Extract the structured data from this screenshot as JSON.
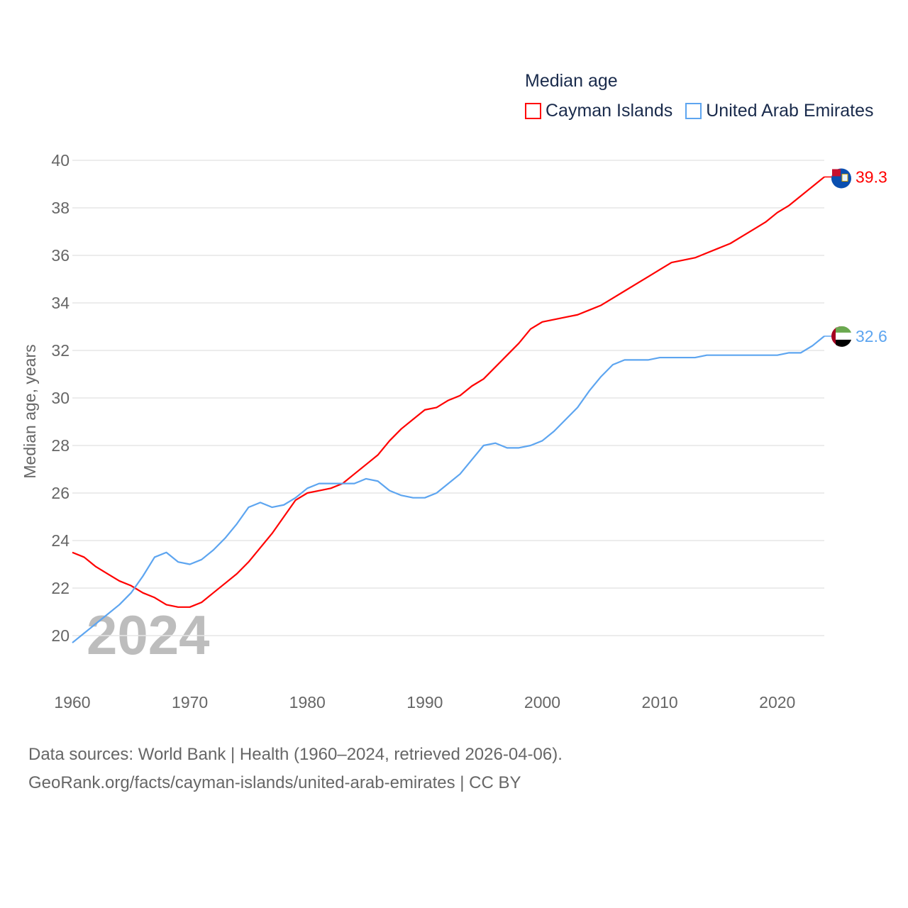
{
  "chart_data": {
    "type": "line",
    "title": "Median age",
    "xlabel": "",
    "ylabel": "Median age, years",
    "xlim": [
      1960,
      2024
    ],
    "ylim": [
      18.5,
      40.5
    ],
    "xticks": [
      1960,
      1970,
      1980,
      1990,
      2000,
      2010,
      2020
    ],
    "yticks": [
      20,
      22,
      24,
      26,
      28,
      30,
      32,
      34,
      36,
      38,
      40
    ],
    "grid": true,
    "legend_position": "top-right",
    "watermark_year": "2024",
    "x": [
      1960,
      1961,
      1962,
      1963,
      1964,
      1965,
      1966,
      1967,
      1968,
      1969,
      1970,
      1971,
      1972,
      1973,
      1974,
      1975,
      1976,
      1977,
      1978,
      1979,
      1980,
      1981,
      1982,
      1983,
      1984,
      1985,
      1986,
      1987,
      1988,
      1989,
      1990,
      1991,
      1992,
      1993,
      1994,
      1995,
      1996,
      1997,
      1998,
      1999,
      2000,
      2001,
      2002,
      2003,
      2004,
      2005,
      2006,
      2007,
      2008,
      2009,
      2010,
      2011,
      2012,
      2013,
      2014,
      2015,
      2016,
      2017,
      2018,
      2019,
      2020,
      2021,
      2022,
      2023,
      2024
    ],
    "series": [
      {
        "name": "Cayman Islands",
        "color": "#ff0000",
        "end_label": "39.3",
        "values": [
          23.5,
          23.3,
          22.9,
          22.6,
          22.3,
          22.1,
          21.8,
          21.6,
          21.3,
          21.2,
          21.2,
          21.4,
          21.8,
          22.2,
          22.6,
          23.1,
          23.7,
          24.3,
          25.0,
          25.7,
          26.0,
          26.1,
          26.2,
          26.4,
          26.8,
          27.2,
          27.6,
          28.2,
          28.7,
          29.1,
          29.5,
          29.6,
          29.9,
          30.1,
          30.5,
          30.8,
          31.3,
          31.8,
          32.3,
          32.9,
          33.2,
          33.3,
          33.4,
          33.5,
          33.7,
          33.9,
          34.2,
          34.5,
          34.8,
          35.1,
          35.4,
          35.7,
          35.8,
          35.9,
          36.1,
          36.3,
          36.5,
          36.8,
          37.1,
          37.4,
          37.8,
          38.1,
          38.5,
          38.9,
          39.3
        ]
      },
      {
        "name": "United Arab Emirates",
        "color": "#5da5f0",
        "end_label": "32.6",
        "values": [
          19.7,
          20.1,
          20.5,
          20.9,
          21.3,
          21.8,
          22.5,
          23.3,
          23.5,
          23.1,
          23.0,
          23.2,
          23.6,
          24.1,
          24.7,
          25.4,
          25.6,
          25.4,
          25.5,
          25.8,
          26.2,
          26.4,
          26.4,
          26.4,
          26.4,
          26.6,
          26.5,
          26.1,
          25.9,
          25.8,
          25.8,
          26.0,
          26.4,
          26.8,
          27.4,
          28.0,
          28.1,
          27.9,
          27.9,
          28.0,
          28.2,
          28.6,
          29.1,
          29.6,
          30.3,
          30.9,
          31.4,
          31.6,
          31.6,
          31.6,
          31.7,
          31.7,
          31.7,
          31.7,
          31.8,
          31.8,
          31.8,
          31.8,
          31.8,
          31.8,
          31.8,
          31.9,
          31.9,
          32.2,
          32.6
        ]
      }
    ]
  },
  "legend": {
    "title": "Median age",
    "items": [
      "Cayman Islands",
      "United Arab Emirates"
    ]
  },
  "footer": {
    "line1": "Data sources: World Bank | Health (1960–2024, retrieved 2026-04-06).",
    "line2": "GeoRank.org/facts/cayman-islands/united-arab-emirates | CC BY"
  }
}
